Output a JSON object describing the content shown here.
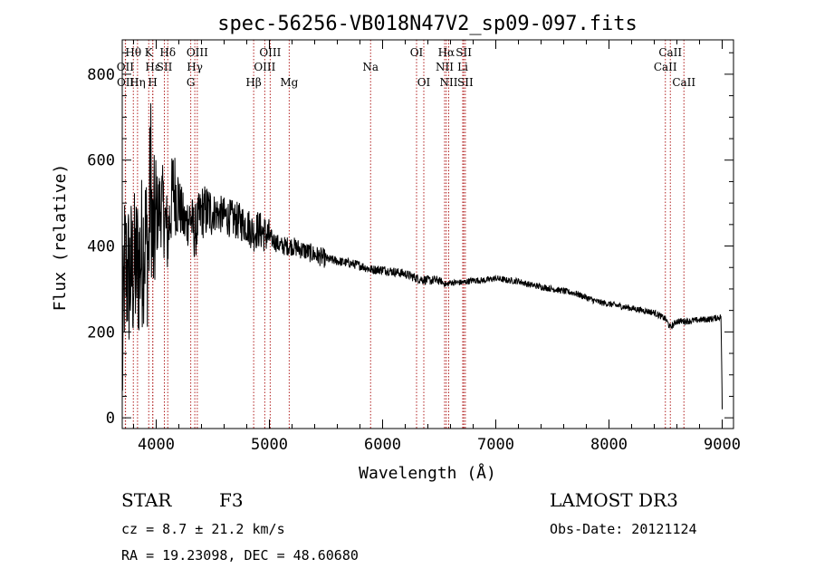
{
  "chart_data": {
    "type": "line",
    "title": "spec-56256-VB018N47V2_sp09-097.fits",
    "xlabel": "Wavelength (Å)",
    "ylabel": "Flux (relative)",
    "xlim": [
      3700,
      9100
    ],
    "ylim": [
      -25,
      880
    ],
    "xticks": [
      4000,
      5000,
      6000,
      7000,
      8000,
      9000
    ],
    "xtick_labels": [
      "4000",
      "5000",
      "6000",
      "7000",
      "8000",
      "9000"
    ],
    "yticks": [
      0,
      200,
      400,
      600,
      800
    ],
    "ytick_labels": [
      "0",
      "200",
      "400",
      "600",
      "800"
    ],
    "spectrum_anchors": {
      "x": [
        3700,
        3720,
        3760,
        3800,
        3850,
        3900,
        3934,
        3950,
        3969,
        4000,
        4050,
        4102,
        4150,
        4200,
        4250,
        4300,
        4340,
        4400,
        4500,
        4600,
        4700,
        4800,
        4861,
        4900,
        5000,
        5100,
        5200,
        5300,
        5400,
        5500,
        5600,
        5700,
        5800,
        5900,
        6000,
        6100,
        6200,
        6300,
        6400,
        6500,
        6563,
        6600,
        6700,
        6800,
        6900,
        7000,
        7100,
        7200,
        7300,
        7400,
        7500,
        7600,
        7700,
        7800,
        7900,
        8000,
        8100,
        8200,
        8300,
        8400,
        8500,
        8542,
        8600,
        8700,
        8800,
        8900,
        8990,
        9000
      ],
      "y": [
        100,
        350,
        330,
        340,
        360,
        420,
        380,
        600,
        390,
        470,
        500,
        420,
        540,
        500,
        450,
        470,
        430,
        480,
        480,
        470,
        460,
        450,
        430,
        440,
        420,
        400,
        400,
        390,
        380,
        370,
        365,
        360,
        355,
        345,
        345,
        340,
        335,
        325,
        320,
        320,
        310,
        315,
        315,
        320,
        320,
        325,
        320,
        318,
        310,
        305,
        300,
        295,
        290,
        280,
        270,
        265,
        260,
        255,
        250,
        245,
        230,
        210,
        225,
        225,
        228,
        230,
        235,
        20
      ]
    },
    "spectral_lines": [
      {
        "name": "Hθ",
        "x": 3798,
        "row": 1
      },
      {
        "name": "OII",
        "x": 3727,
        "row": 2
      },
      {
        "name": "OII",
        "x": 3729,
        "row": 3
      },
      {
        "name": "K",
        "x": 3934,
        "row": 1
      },
      {
        "name": "Hε",
        "x": 3970,
        "row": 2
      },
      {
        "name": "Hη",
        "x": 3835,
        "row": 3
      },
      {
        "name": "H",
        "x": 3969,
        "row": 3
      },
      {
        "name": "SII",
        "x": 4072,
        "row": 2
      },
      {
        "name": "Hδ",
        "x": 4102,
        "row": 1
      },
      {
        "name": "OIII",
        "x": 4363,
        "row": 1
      },
      {
        "name": "Hγ",
        "x": 4341,
        "row": 2
      },
      {
        "name": "G",
        "x": 4305,
        "row": 3
      },
      {
        "name": "OIII",
        "x": 5007,
        "row": 1
      },
      {
        "name": "OIII",
        "x": 4959,
        "row": 2
      },
      {
        "name": "Hβ",
        "x": 4861,
        "row": 3
      },
      {
        "name": "Mg",
        "x": 5175,
        "row": 3
      },
      {
        "name": "Na",
        "x": 5894,
        "row": 2
      },
      {
        "name": "OI",
        "x": 6300,
        "row": 1
      },
      {
        "name": "OI",
        "x": 6364,
        "row": 3
      },
      {
        "name": "Hα",
        "x": 6563,
        "row": 1
      },
      {
        "name": "NII",
        "x": 6548,
        "row": 2
      },
      {
        "name": "NII",
        "x": 6584,
        "row": 3
      },
      {
        "name": "SII",
        "x": 6717,
        "row": 1
      },
      {
        "name": "Li",
        "x": 6708,
        "row": 2
      },
      {
        "name": "SII",
        "x": 6731,
        "row": 3
      },
      {
        "name": "CaII",
        "x": 8542,
        "row": 1
      },
      {
        "name": "CaII",
        "x": 8498,
        "row": 2
      },
      {
        "name": "CaII",
        "x": 8662,
        "row": 3
      }
    ]
  },
  "info": {
    "object_type": "STAR",
    "subclass": "F3",
    "cz": "cz = 8.7 ± 21.2 km/s",
    "coords": "RA =  19.23098, DEC =  48.60680",
    "survey": "LAMOST DR3",
    "obs_date": "Obs-Date: 20121124"
  },
  "colors": {
    "line_marker": "#b22222",
    "spectrum": "#000000"
  }
}
